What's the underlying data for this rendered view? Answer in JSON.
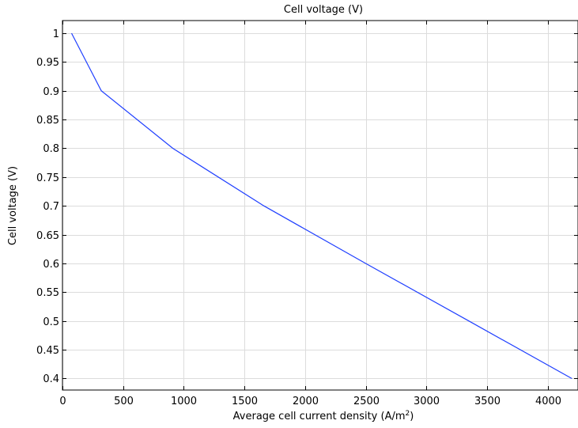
{
  "chart_data": {
    "type": "line",
    "title": "Cell voltage (V)",
    "xlabel_main": "Average cell current density (A/m",
    "xlabel_sup": "2",
    "xlabel_end": ")",
    "ylabel": "Cell voltage (V)",
    "xlim": [
      0,
      4250
    ],
    "ylim": [
      0.38,
      1.022
    ],
    "xticks": [
      0,
      500,
      1000,
      1500,
      2000,
      2500,
      3000,
      3500,
      4000
    ],
    "yticks": [
      0.4,
      0.45,
      0.5,
      0.55,
      0.6,
      0.65,
      0.7,
      0.75,
      0.8,
      0.85,
      0.9,
      0.95,
      1
    ],
    "grid": true,
    "series": [
      {
        "color": "#1f3fff",
        "x": [
          75,
          320,
          910,
          1660,
          2500,
          3350,
          4200
        ],
        "y": [
          1.0,
          0.9,
          0.8,
          0.7,
          0.6,
          0.5,
          0.4
        ]
      }
    ]
  }
}
